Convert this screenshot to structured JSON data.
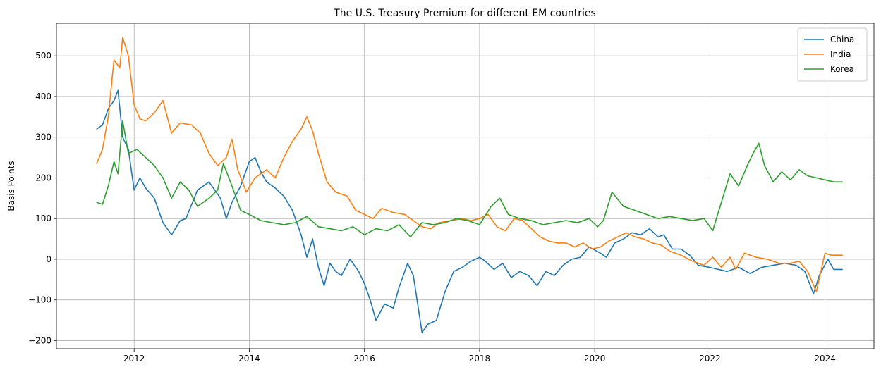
{
  "chart_data": {
    "type": "line",
    "title": "The U.S. Treasury Premium for different EM countries",
    "xlabel": "",
    "ylabel": "Basis Points",
    "xlim": [
      2010.65,
      2024.85
    ],
    "ylim": [
      -220,
      580
    ],
    "x_ticks": [
      2012,
      2014,
      2016,
      2018,
      2020,
      2022,
      2024
    ],
    "x_tick_labels": [
      "2012",
      "2014",
      "2016",
      "2018",
      "2020",
      "2022",
      "2024"
    ],
    "y_ticks": [
      -200,
      -100,
      0,
      100,
      200,
      300,
      400,
      500
    ],
    "y_tick_labels": [
      "−200",
      "−100",
      "0",
      "100",
      "200",
      "300",
      "400",
      "500"
    ],
    "grid": true,
    "legend_position": "top-right",
    "series": [
      {
        "name": "China",
        "color": "#1f77b4",
        "x": [
          2011.35,
          2011.45,
          2011.55,
          2011.65,
          2011.72,
          2011.8,
          2011.9,
          2012.0,
          2012.1,
          2012.2,
          2012.35,
          2012.5,
          2012.65,
          2012.8,
          2012.9,
          2013.1,
          2013.3,
          2013.5,
          2013.6,
          2013.7,
          2013.85,
          2014.0,
          2014.1,
          2014.2,
          2014.3,
          2014.45,
          2014.6,
          2014.75,
          2014.9,
          2015.0,
          2015.1,
          2015.2,
          2015.3,
          2015.4,
          2015.5,
          2015.6,
          2015.75,
          2015.9,
          2016.0,
          2016.1,
          2016.2,
          2016.35,
          2016.5,
          2016.6,
          2016.75,
          2016.85,
          2017.0,
          2017.1,
          2017.25,
          2017.4,
          2017.55,
          2017.7,
          2017.85,
          2018.0,
          2018.1,
          2018.25,
          2018.4,
          2018.55,
          2018.7,
          2018.85,
          2019.0,
          2019.15,
          2019.3,
          2019.45,
          2019.6,
          2019.75,
          2019.9,
          2020.1,
          2020.2,
          2020.35,
          2020.5,
          2020.65,
          2020.8,
          2020.95,
          2021.1,
          2021.2,
          2021.35,
          2021.5,
          2021.65,
          2021.8,
          2022.0,
          2022.15,
          2022.3,
          2022.5,
          2022.7,
          2022.9,
          2023.1,
          2023.3,
          2023.5,
          2023.65,
          2023.8,
          2023.9,
          2024.05,
          2024.15,
          2024.3
        ],
        "values": [
          320,
          330,
          370,
          390,
          415,
          300,
          270,
          170,
          200,
          175,
          150,
          90,
          60,
          95,
          100,
          170,
          190,
          150,
          100,
          140,
          180,
          240,
          250,
          215,
          190,
          175,
          155,
          120,
          60,
          5,
          50,
          -20,
          -65,
          -10,
          -30,
          -40,
          0,
          -30,
          -60,
          -100,
          -150,
          -110,
          -120,
          -70,
          -10,
          -40,
          -180,
          -160,
          -150,
          -80,
          -30,
          -20,
          -5,
          5,
          -5,
          -25,
          -10,
          -45,
          -30,
          -40,
          -65,
          -30,
          -40,
          -15,
          0,
          5,
          30,
          15,
          5,
          40,
          50,
          65,
          60,
          75,
          55,
          60,
          25,
          25,
          10,
          -15,
          -20,
          -25,
          -30,
          -20,
          -35,
          -20,
          -15,
          -10,
          -15,
          -30,
          -85,
          -40,
          0,
          -25,
          -25
        ]
      },
      {
        "name": "India",
        "color": "#ff7f0e",
        "x": [
          2011.35,
          2011.45,
          2011.55,
          2011.65,
          2011.75,
          2011.8,
          2011.9,
          2012.0,
          2012.1,
          2012.2,
          2012.35,
          2012.5,
          2012.65,
          2012.8,
          2013.0,
          2013.15,
          2013.3,
          2013.45,
          2013.6,
          2013.7,
          2013.8,
          2013.95,
          2014.1,
          2014.3,
          2014.45,
          2014.6,
          2014.75,
          2014.9,
          2015.0,
          2015.1,
          2015.2,
          2015.35,
          2015.5,
          2015.7,
          2015.85,
          2016.0,
          2016.15,
          2016.3,
          2016.5,
          2016.7,
          2016.85,
          2017.0,
          2017.15,
          2017.3,
          2017.5,
          2017.7,
          2017.85,
          2018.0,
          2018.15,
          2018.3,
          2018.45,
          2018.6,
          2018.75,
          2018.9,
          2019.05,
          2019.2,
          2019.35,
          2019.5,
          2019.65,
          2019.8,
          2019.95,
          2020.1,
          2020.25,
          2020.4,
          2020.55,
          2020.7,
          2020.85,
          2021.0,
          2021.15,
          2021.3,
          2021.5,
          2021.7,
          2021.9,
          2022.05,
          2022.2,
          2022.35,
          2022.45,
          2022.6,
          2022.8,
          2023.0,
          2023.2,
          2023.4,
          2023.55,
          2023.7,
          2023.85,
          2024.0,
          2024.1,
          2024.3
        ],
        "values": [
          235,
          270,
          350,
          490,
          470,
          545,
          500,
          380,
          345,
          340,
          360,
          390,
          310,
          335,
          330,
          310,
          260,
          230,
          250,
          295,
          220,
          165,
          200,
          220,
          200,
          250,
          290,
          320,
          350,
          315,
          260,
          190,
          165,
          155,
          120,
          110,
          100,
          125,
          115,
          110,
          95,
          80,
          75,
          90,
          95,
          100,
          95,
          100,
          110,
          80,
          70,
          100,
          95,
          75,
          55,
          45,
          40,
          40,
          30,
          40,
          25,
          30,
          45,
          55,
          65,
          55,
          50,
          40,
          35,
          20,
          10,
          -5,
          -15,
          5,
          -20,
          5,
          -25,
          15,
          5,
          0,
          -10,
          -10,
          -5,
          -30,
          -80,
          15,
          10,
          10
        ]
      },
      {
        "name": "Korea",
        "color": "#2ca02c",
        "x": [
          2011.35,
          2011.45,
          2011.55,
          2011.65,
          2011.72,
          2011.8,
          2011.9,
          2012.05,
          2012.2,
          2012.35,
          2012.5,
          2012.65,
          2012.8,
          2012.95,
          2013.1,
          2013.3,
          2013.45,
          2013.55,
          2013.7,
          2013.85,
          2014.0,
          2014.2,
          2014.4,
          2014.6,
          2014.8,
          2015.0,
          2015.2,
          2015.4,
          2015.6,
          2015.8,
          2016.0,
          2016.2,
          2016.4,
          2016.6,
          2016.8,
          2017.0,
          2017.2,
          2017.4,
          2017.6,
          2017.8,
          2018.0,
          2018.2,
          2018.35,
          2018.5,
          2018.7,
          2018.9,
          2019.1,
          2019.3,
          2019.5,
          2019.7,
          2019.9,
          2020.05,
          2020.15,
          2020.3,
          2020.5,
          2020.7,
          2020.9,
          2021.1,
          2021.3,
          2021.5,
          2021.7,
          2021.9,
          2022.05,
          2022.2,
          2022.35,
          2022.5,
          2022.65,
          2022.75,
          2022.85,
          2022.95,
          2023.1,
          2023.25,
          2023.4,
          2023.55,
          2023.7,
          2023.85,
          2024.0,
          2024.15,
          2024.3
        ],
        "values": [
          140,
          135,
          180,
          240,
          210,
          340,
          260,
          270,
          250,
          230,
          200,
          150,
          190,
          170,
          130,
          150,
          170,
          235,
          180,
          120,
          110,
          95,
          90,
          85,
          90,
          105,
          80,
          75,
          70,
          80,
          60,
          75,
          70,
          85,
          55,
          90,
          85,
          90,
          100,
          95,
          85,
          130,
          150,
          110,
          100,
          95,
          85,
          90,
          95,
          90,
          100,
          80,
          95,
          165,
          130,
          120,
          110,
          100,
          105,
          100,
          95,
          100,
          70,
          140,
          210,
          180,
          230,
          260,
          285,
          230,
          190,
          215,
          195,
          220,
          205,
          200,
          195,
          190,
          190
        ]
      }
    ]
  }
}
